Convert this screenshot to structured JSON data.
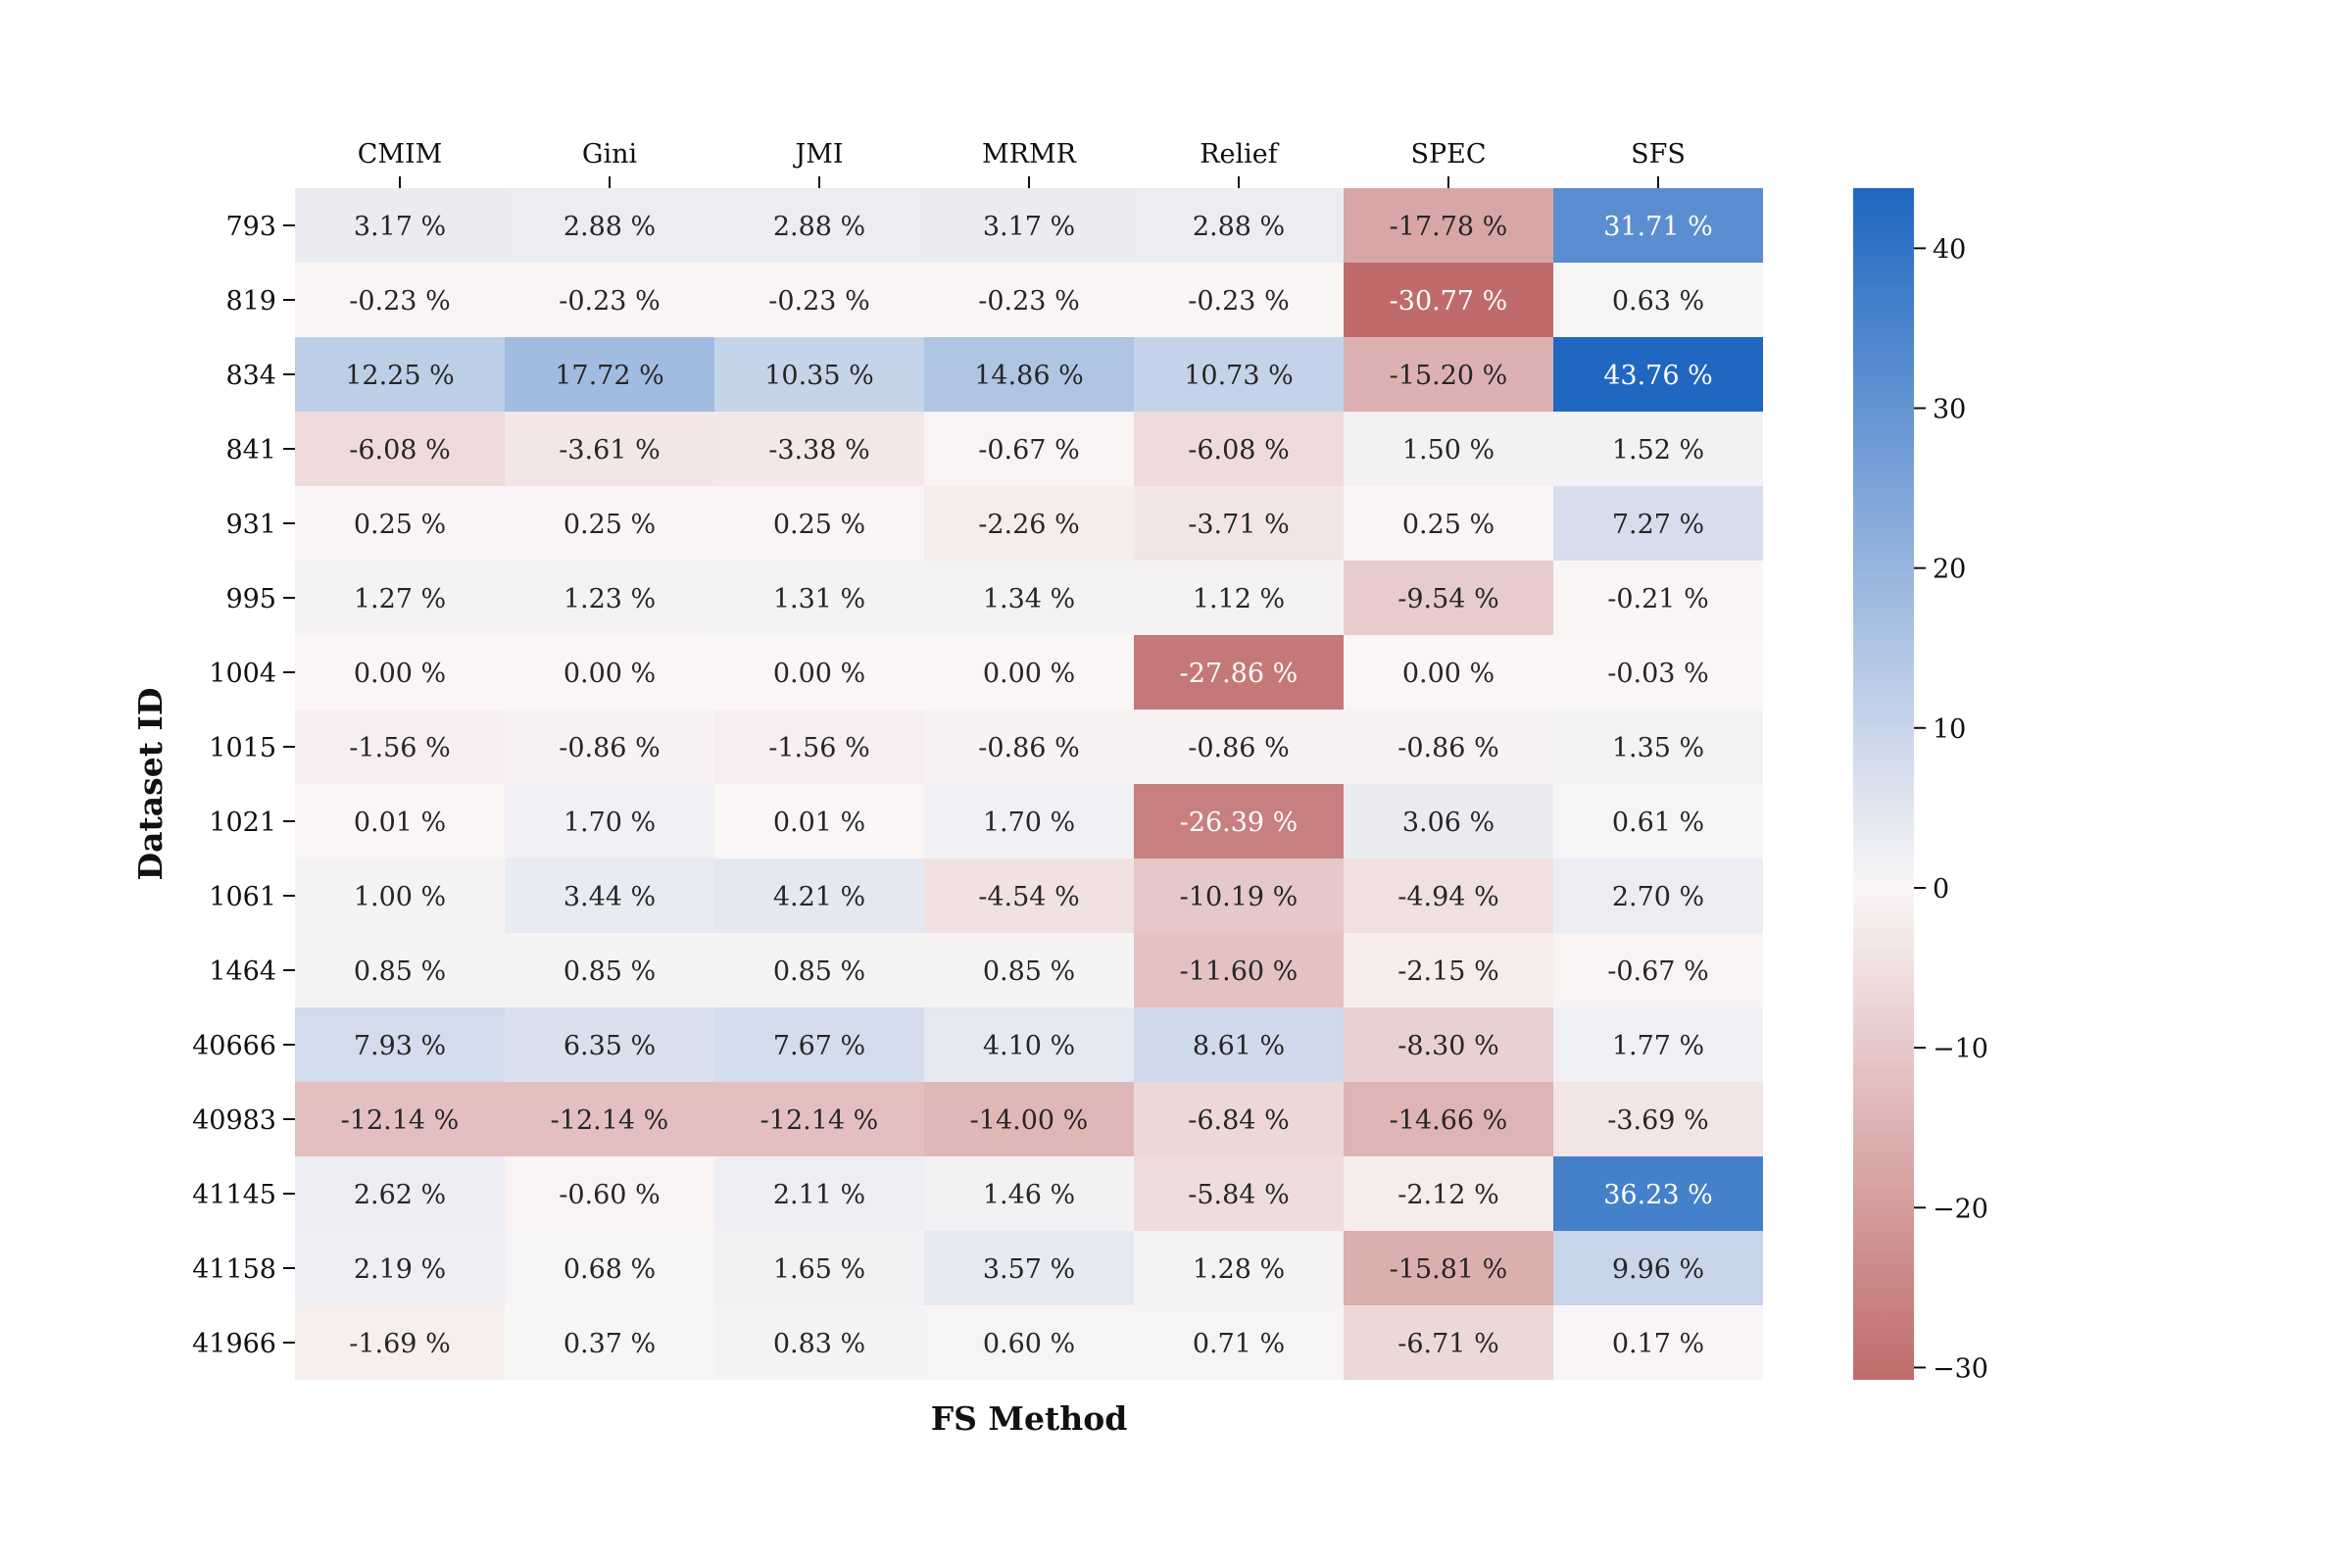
{
  "chart_data": {
    "type": "heatmap",
    "xlabel": "FS Method",
    "ylabel": "Dataset ID",
    "columns": [
      "CMIM",
      "Gini",
      "JMI",
      "MRMR",
      "Relief",
      "SPEC",
      "SFS"
    ],
    "rows": [
      "793",
      "819",
      "834",
      "841",
      "931",
      "995",
      "1004",
      "1015",
      "1021",
      "1061",
      "1464",
      "40666",
      "40983",
      "41145",
      "41158",
      "41966"
    ],
    "values": [
      [
        3.17,
        2.88,
        2.88,
        3.17,
        2.88,
        -17.78,
        31.71
      ],
      [
        -0.23,
        -0.23,
        -0.23,
        -0.23,
        -0.23,
        -30.77,
        0.63
      ],
      [
        12.25,
        17.72,
        10.35,
        14.86,
        10.73,
        -15.2,
        43.76
      ],
      [
        -6.08,
        -3.61,
        -3.38,
        -0.67,
        -6.08,
        1.5,
        1.52
      ],
      [
        0.25,
        0.25,
        0.25,
        -2.26,
        -3.71,
        0.25,
        7.27
      ],
      [
        1.27,
        1.23,
        1.31,
        1.34,
        1.12,
        -9.54,
        -0.21
      ],
      [
        0.0,
        0.0,
        0.0,
        0.0,
        -27.86,
        0.0,
        -0.03
      ],
      [
        -1.56,
        -0.86,
        -1.56,
        -0.86,
        -0.86,
        -0.86,
        1.35
      ],
      [
        0.01,
        1.7,
        0.01,
        1.7,
        -26.39,
        3.06,
        0.61
      ],
      [
        1.0,
        3.44,
        4.21,
        -4.54,
        -10.19,
        -4.94,
        2.7
      ],
      [
        0.85,
        0.85,
        0.85,
        0.85,
        -11.6,
        -2.15,
        -0.67
      ],
      [
        7.93,
        6.35,
        7.67,
        4.1,
        8.61,
        -8.3,
        1.77
      ],
      [
        -12.14,
        -12.14,
        -12.14,
        -14.0,
        -6.84,
        -14.66,
        -3.69
      ],
      [
        2.62,
        -0.6,
        2.11,
        1.46,
        -5.84,
        -2.12,
        36.23
      ],
      [
        2.19,
        0.68,
        1.65,
        3.57,
        1.28,
        -15.81,
        9.96
      ],
      [
        -1.69,
        0.37,
        0.83,
        0.6,
        0.71,
        -6.71,
        0.17
      ]
    ],
    "value_suffix": " %",
    "decimals": 2,
    "colorbar": {
      "min": -30.77,
      "max": 43.76,
      "center": 0,
      "ticks": [
        -30,
        -20,
        -10,
        0,
        10,
        20,
        30,
        40
      ],
      "low_color": "#c06b6b",
      "mid_color": "#faf6f6",
      "high_color": "#1f67c1"
    },
    "x_tick_position": "top",
    "grid": false
  }
}
